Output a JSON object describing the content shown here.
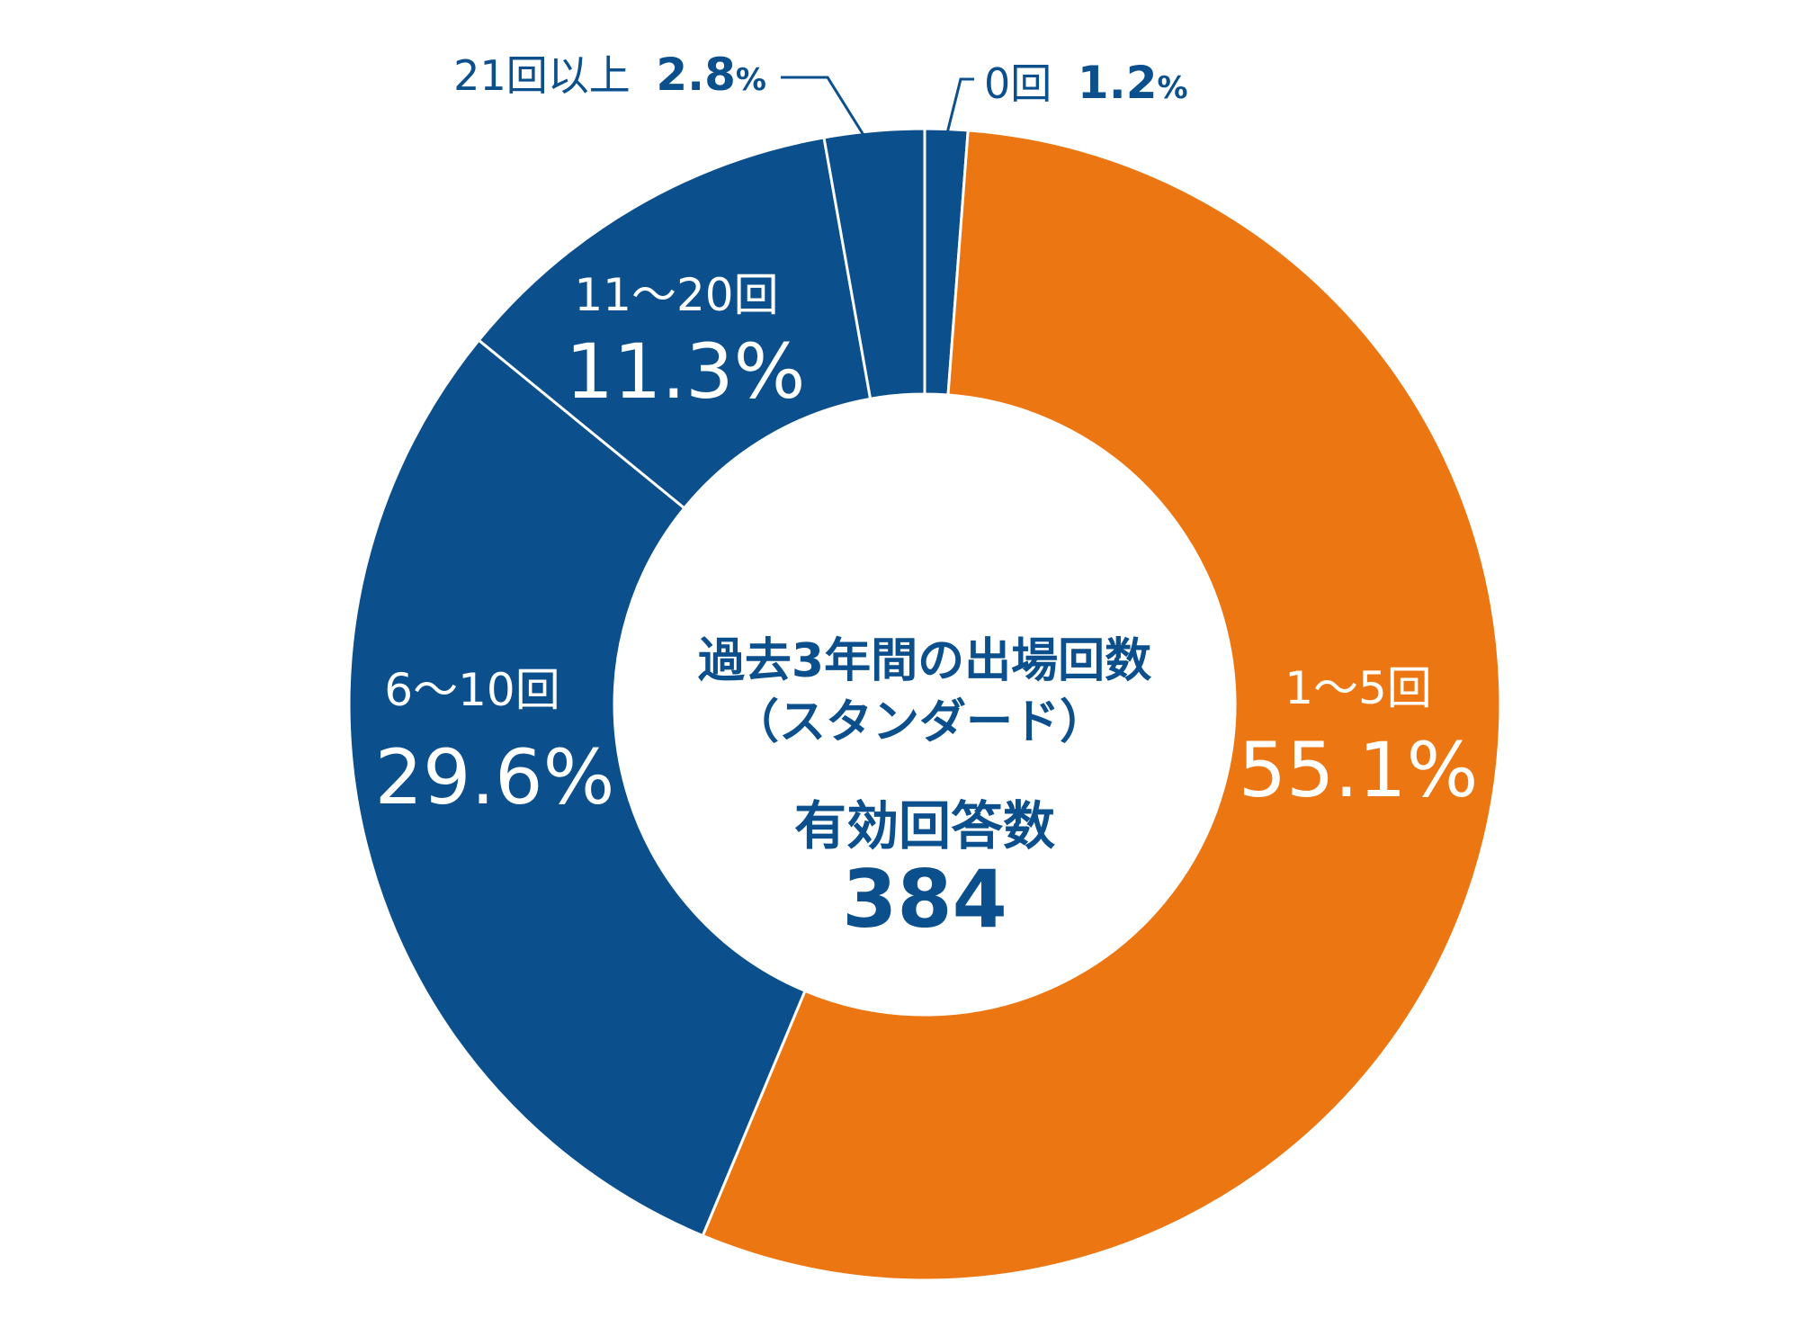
{
  "chart_data": {
    "type": "pie",
    "variant": "donut",
    "center": {
      "title_line1": "過去3年間の出場回数",
      "title_line2": "（スタンダード）",
      "count_label": "有効回答数",
      "count_value": "384"
    },
    "slices": [
      {
        "label": "0回",
        "value": 1.2,
        "display": "1.2",
        "unit": "%",
        "color": "#0b4f8c"
      },
      {
        "label": "1〜5回",
        "value": 55.1,
        "display": "55.1%",
        "color": "#ec7712"
      },
      {
        "label": "6〜10回",
        "value": 29.6,
        "display": "29.6%",
        "color": "#0b4f8c"
      },
      {
        "label": "11〜20回",
        "value": 11.3,
        "display": "11.3%",
        "color": "#0b4f8c"
      },
      {
        "label": "21回以上",
        "value": 2.8,
        "display": "2.8",
        "unit": "%",
        "color": "#0b4f8c"
      }
    ],
    "separator_color": "#ffffff",
    "leader_line_color": "#0b4f8c"
  }
}
